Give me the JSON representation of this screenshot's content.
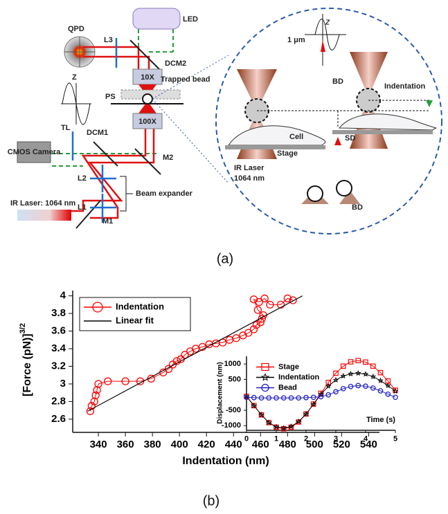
{
  "diagram": {
    "LED": "LED",
    "QPD": "QPD",
    "L3": "L3",
    "DCM2": "DCM2",
    "z_small": "Z",
    "obj10": "10X",
    "trapped_bead": "Trapped bead",
    "PS": "PS",
    "obj100": "100X",
    "TL": "TL",
    "DCM1": "DCM1",
    "camera": "CMOS Camera",
    "M2": "M2",
    "L2": "L2",
    "L1": "L1",
    "beam_expander": "Beam expander",
    "ir_laser": "IR Laser: 1064 nm",
    "M1": "M1",
    "zoom": {
      "z": "z",
      "one_um": "1 μm",
      "BD_top": "BD",
      "indentation": "Indentation",
      "cell": "Cell",
      "stage": "Stage",
      "SD": "SD",
      "ir_laser": "IR Laser",
      "wavelength": "1064 nm",
      "BD_bottom": "BD"
    }
  },
  "captions": {
    "a": "(a)",
    "b": "(b)"
  },
  "chart_data": [
    {
      "type": "line",
      "xlabel": "Indentation (nm)",
      "ylabel": "[Force (pN)]",
      "ylabel_superscript": "3/2",
      "xlim": [
        321,
        548
      ],
      "ylim": [
        2.45,
        4.06
      ],
      "xticks": [
        340,
        360,
        380,
        400,
        420,
        440,
        460,
        480,
        500,
        520,
        540
      ],
      "yticks": [
        2.6,
        2.8,
        3,
        3.2,
        3.4,
        3.6,
        3.8,
        4
      ],
      "legend": "upper left",
      "series": [
        {
          "name": "Indentation",
          "color": "#ff0000",
          "marker": "circle",
          "x": [
            334,
            335,
            337,
            338,
            339,
            340,
            347,
            360,
            371,
            379,
            388,
            392,
            395,
            398,
            401,
            404,
            408,
            412,
            417,
            422,
            427,
            432,
            437,
            442,
            447,
            451,
            455,
            457,
            460,
            461,
            462,
            458,
            455,
            459,
            463,
            467,
            475,
            480,
            484
          ],
          "values": [
            2.69,
            2.75,
            2.8,
            2.87,
            2.93,
            3.0,
            3.03,
            3.03,
            3.03,
            3.06,
            3.13,
            3.17,
            3.22,
            3.26,
            3.28,
            3.33,
            3.37,
            3.4,
            3.42,
            3.45,
            3.46,
            3.47,
            3.5,
            3.52,
            3.55,
            3.58,
            3.62,
            3.67,
            3.7,
            3.74,
            3.78,
            3.84,
            3.96,
            3.93,
            3.97,
            3.9,
            3.9,
            3.97,
            3.95
          ]
        },
        {
          "name": "Linear fit",
          "color": "#000000",
          "marker": "none",
          "x": [
            332,
            491
          ],
          "values": [
            2.69,
            4.0
          ]
        }
      ]
    },
    {
      "type": "line",
      "xlabel": "Time (s)",
      "ylabel": "Displacement (nm)",
      "xlim": [
        0,
        5
      ],
      "ylim": [
        -1150,
        1250
      ],
      "xticks": [
        0,
        1,
        2,
        3,
        4,
        5
      ],
      "yticks": [
        -1000,
        -500,
        500,
        1000
      ],
      "legend": "upper left",
      "x": [
        0,
        0.25,
        0.5,
        0.75,
        1,
        1.25,
        1.5,
        1.75,
        2,
        2.25,
        2.5,
        2.75,
        3,
        3.25,
        3.5,
        3.75,
        4,
        4.25,
        4.5,
        4.75,
        5
      ],
      "series": [
        {
          "name": "Stage",
          "color": "#ff0000",
          "marker": "square",
          "values": [
            -50,
            -350,
            -650,
            -900,
            -1050,
            -1100,
            -1050,
            -880,
            -620,
            -300,
            50,
            400,
            700,
            930,
            1070,
            1110,
            1060,
            930,
            720,
            450,
            150
          ]
        },
        {
          "name": "Indentation",
          "color": "#000000",
          "marker": "star",
          "values": [
            -50,
            -350,
            -650,
            -900,
            -1040,
            -1080,
            -1030,
            -870,
            -620,
            -310,
            20,
            280,
            480,
            610,
            680,
            700,
            670,
            590,
            460,
            300,
            120
          ]
        },
        {
          "name": "Bead",
          "color": "#2020c0",
          "marker": "circle",
          "values": [
            -80,
            -90,
            -100,
            -100,
            -100,
            -100,
            -100,
            -100,
            -90,
            -80,
            -60,
            0,
            100,
            200,
            270,
            300,
            280,
            220,
            130,
            20,
            -80
          ]
        }
      ]
    }
  ]
}
